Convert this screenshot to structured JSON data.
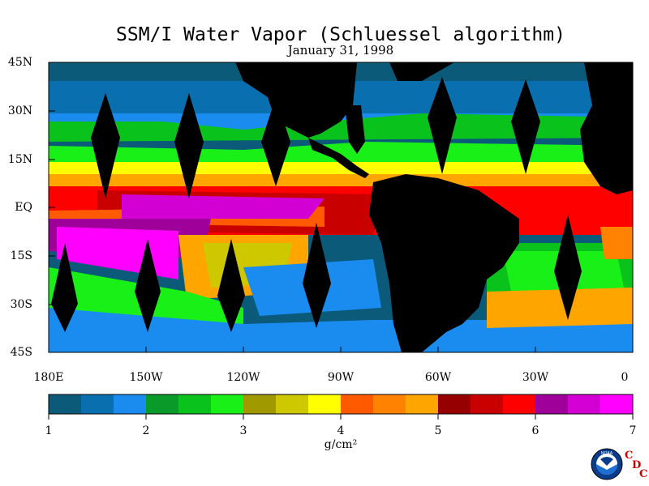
{
  "title": "SSM/I Water Vapor (Schluessel algorithm)",
  "date": "January 31, 1998",
  "latitude_labels": [
    "45N",
    "30N",
    "15N",
    "EQ",
    "15S",
    "30S",
    "45S"
  ],
  "longitude_labels": [
    "180E",
    "150W",
    "120W",
    "90W",
    "60W",
    "30W",
    "0"
  ],
  "colorbar": {
    "colors": [
      "#0b5a7a",
      "#0a6fae",
      "#1a8cf0",
      "#0a9a2a",
      "#0ac21c",
      "#18f018",
      "#a09a00",
      "#cdc800",
      "#ffff00",
      "#ff5a00",
      "#ff8200",
      "#ffa500",
      "#960000",
      "#c80000",
      "#ff0000",
      "#a0009a",
      "#d200d2",
      "#ff00ff"
    ],
    "tick_labels": [
      "1",
      "2",
      "3",
      "4",
      "5",
      "6",
      "7"
    ],
    "units": "g/cm²"
  },
  "logo": {
    "name": "NOAA",
    "letters": [
      "C",
      "D",
      "C"
    ]
  }
}
